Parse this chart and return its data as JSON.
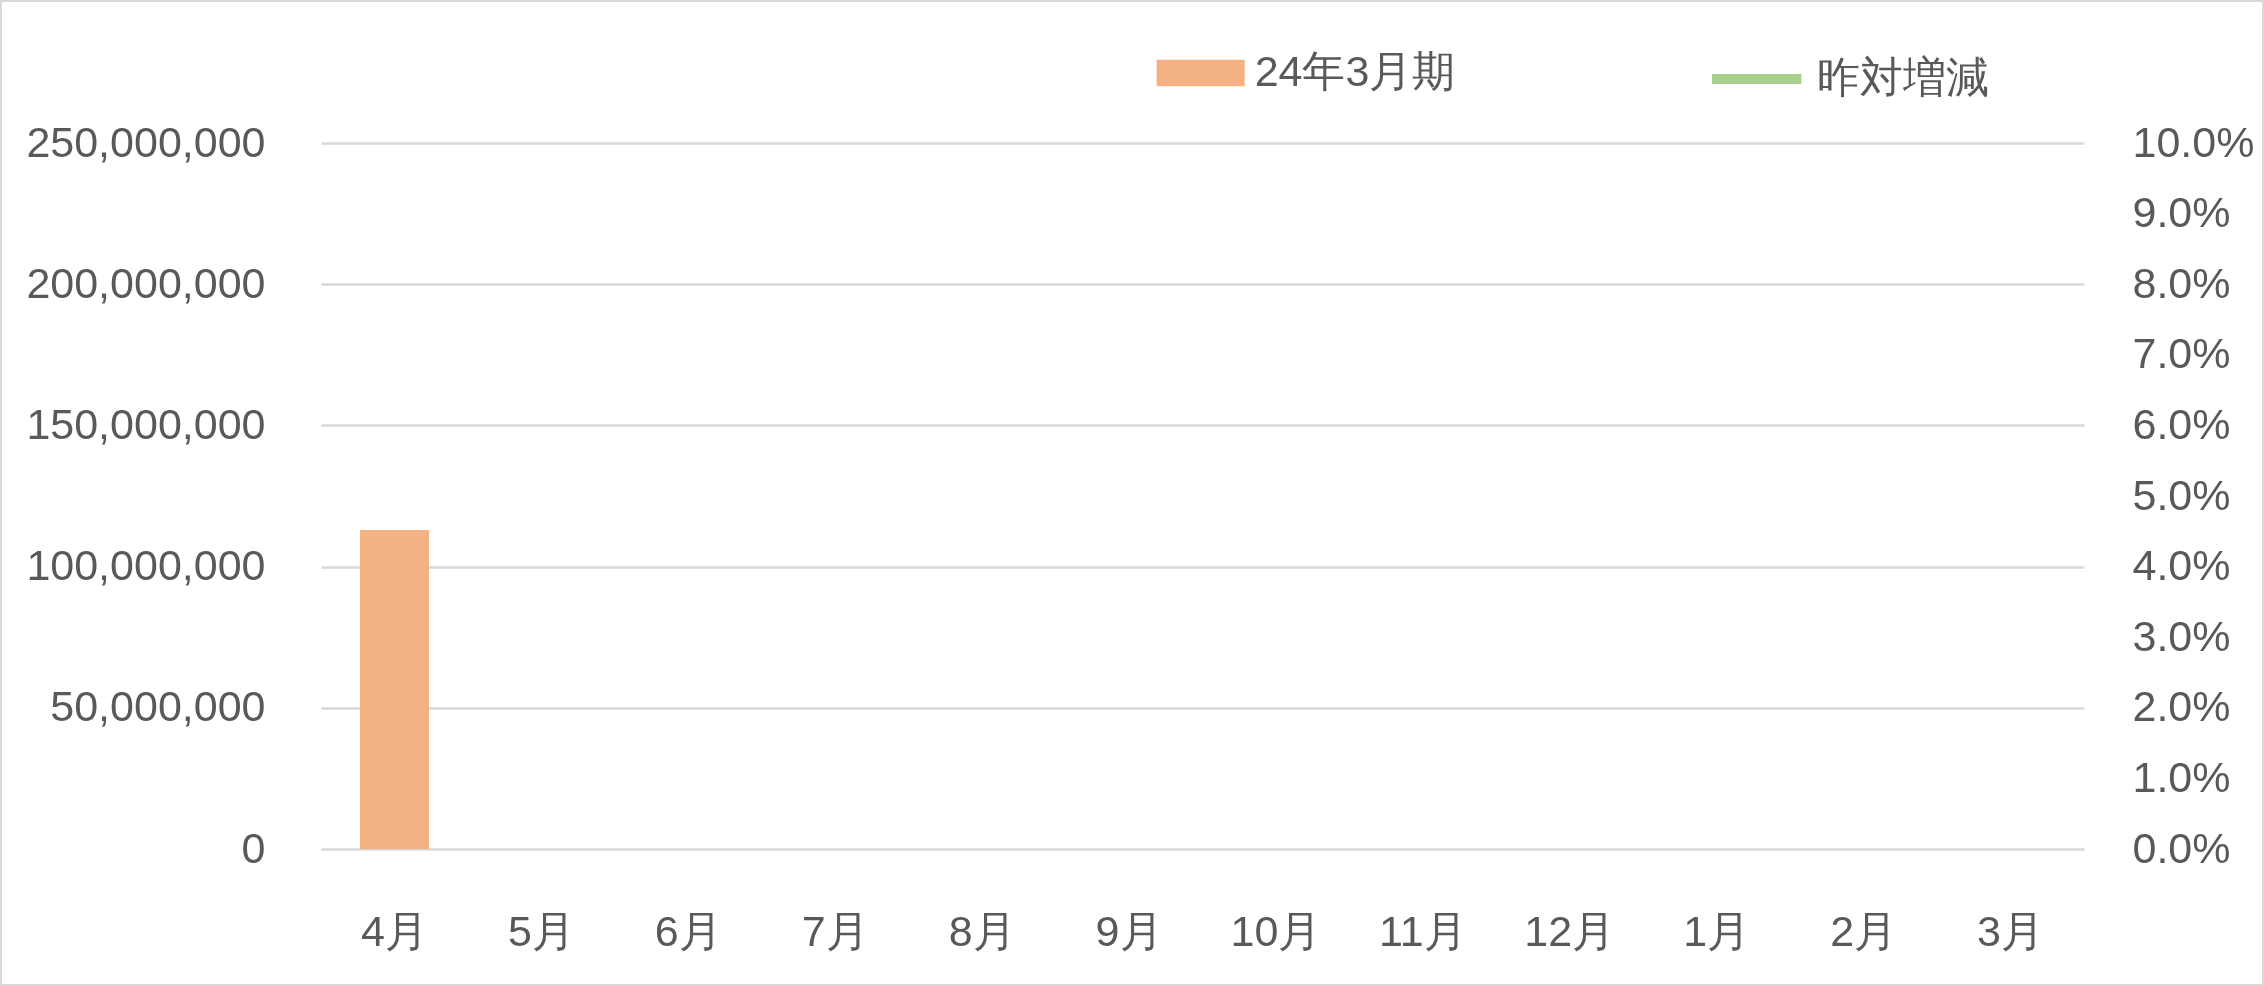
{
  "chart_data": {
    "type": "bar",
    "categories": [
      "4月",
      "5月",
      "6月",
      "7月",
      "8月",
      "9月",
      "10月",
      "11月",
      "12月",
      "1月",
      "2月",
      "3月"
    ],
    "series": [
      {
        "name": "24年3月期",
        "color": "#f4b183",
        "values": [
          113000000,
          null,
          null,
          null,
          null,
          null,
          null,
          null,
          null,
          null,
          null,
          null
        ]
      },
      {
        "name": "昨対増減",
        "type": "line",
        "axis": "y2",
        "color": "#a9d18e",
        "values": [
          null,
          null,
          null,
          null,
          null,
          null,
          null,
          null,
          null,
          null,
          null,
          null
        ]
      }
    ],
    "ylim": [
      0,
      250000000
    ],
    "yticks": [
      {
        "value": 0,
        "label": "0"
      },
      {
        "value": 50000000,
        "label": "50,000,000"
      },
      {
        "value": 100000000,
        "label": "100,000,000"
      },
      {
        "value": 150000000,
        "label": "150,000,000"
      },
      {
        "value": 200000000,
        "label": "200,000,000"
      },
      {
        "value": 250000000,
        "label": "250,000,000"
      }
    ],
    "y2lim": [
      0,
      10
    ],
    "y2ticks": [
      {
        "value": 0,
        "label": "0.0%"
      },
      {
        "value": 1,
        "label": "1.0%"
      },
      {
        "value": 2,
        "label": "2.0%"
      },
      {
        "value": 3,
        "label": "3.0%"
      },
      {
        "value": 4,
        "label": "4.0%"
      },
      {
        "value": 5,
        "label": "5.0%"
      },
      {
        "value": 6,
        "label": "6.0%"
      },
      {
        "value": 7,
        "label": "7.0%"
      },
      {
        "value": 8,
        "label": "8.0%"
      },
      {
        "value": 9,
        "label": "9.0%"
      },
      {
        "value": 10,
        "label": "10.0%"
      }
    ],
    "grid": "y",
    "legend": "top"
  }
}
